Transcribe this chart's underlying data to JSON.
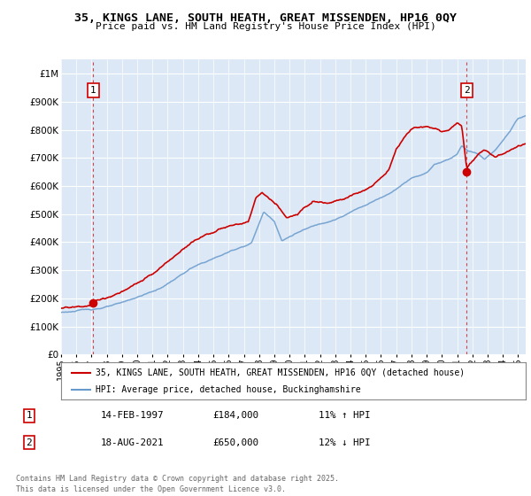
{
  "title_line1": "35, KINGS LANE, SOUTH HEATH, GREAT MISSENDEN, HP16 0QY",
  "title_line2": "Price paid vs. HM Land Registry's House Price Index (HPI)",
  "ylim": [
    0,
    1050000
  ],
  "yticks": [
    0,
    100000,
    200000,
    300000,
    400000,
    500000,
    600000,
    700000,
    800000,
    900000,
    1000000
  ],
  "ytick_labels": [
    "£0",
    "£100K",
    "£200K",
    "£300K",
    "£400K",
    "£500K",
    "£600K",
    "£700K",
    "£800K",
    "£900K",
    "£1M"
  ],
  "background_color": "#ffffff",
  "plot_bg_color": "#dce8f5",
  "grid_color": "#ffffff",
  "red_line_color": "#cc0000",
  "blue_line_color": "#6699cc",
  "marker1_x": 1997.12,
  "marker1_y": 184000,
  "marker2_x": 2021.63,
  "marker2_y": 650000,
  "marker1_date": "14-FEB-1997",
  "marker1_price": "£184,000",
  "marker1_hpi": "11% ↑ HPI",
  "marker2_date": "18-AUG-2021",
  "marker2_price": "£650,000",
  "marker2_hpi": "12% ↓ HPI",
  "legend_label1": "35, KINGS LANE, SOUTH HEATH, GREAT MISSENDEN, HP16 0QY (detached house)",
  "legend_label2": "HPI: Average price, detached house, Buckinghamshire",
  "footnote": "Contains HM Land Registry data © Crown copyright and database right 2025.\nThis data is licensed under the Open Government Licence v3.0.",
  "xmin": 1995.0,
  "xmax": 2025.5
}
